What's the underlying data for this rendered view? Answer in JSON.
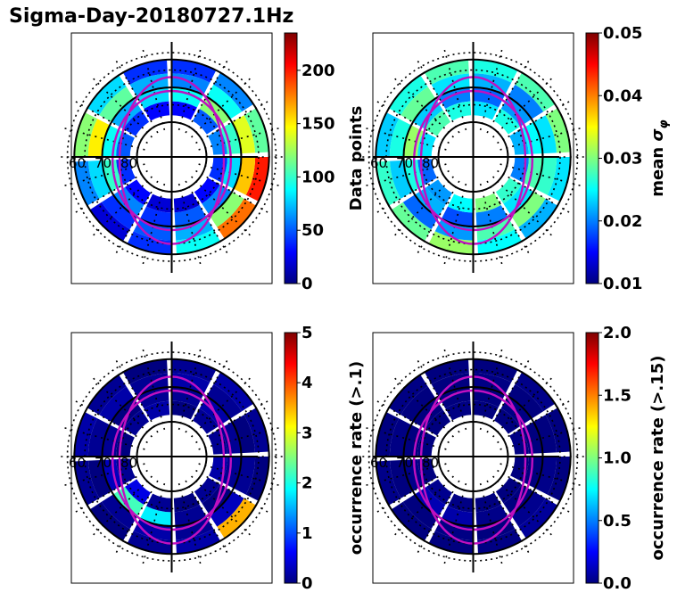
{
  "title": "Sigma-Day-20180727.1Hz",
  "colormap": [
    "#00007f",
    "#0000ff",
    "#007fff",
    "#00ffff",
    "#7fff7f",
    "#ffff00",
    "#ff7f00",
    "#ff0000",
    "#7f0000"
  ],
  "chart_data": [
    {
      "type": "heatmap",
      "panel": "data-points",
      "projection": "polar",
      "lat_labels": [
        "60",
        "70",
        "80"
      ],
      "colorbar": {
        "label": "Data points",
        "min": 0,
        "max": 235,
        "ticks": [
          "0",
          "50",
          "100",
          "150",
          "200"
        ],
        "tick_values": [
          0,
          50,
          100,
          150,
          200
        ]
      },
      "lat_bands": [
        {
          "lat_range": [
            62,
            66
          ],
          "values": [
            40,
            60,
            110,
            200,
            180,
            90,
            40,
            20,
            60,
            120,
            80,
            40
          ]
        },
        {
          "lat_range": [
            66,
            70
          ],
          "values": [
            60,
            90,
            140,
            160,
            120,
            70,
            50,
            40,
            80,
            150,
            110,
            70
          ]
        },
        {
          "lat_range": [
            70,
            74
          ],
          "values": [
            90,
            120,
            100,
            80,
            60,
            50,
            40,
            60,
            100,
            90,
            70,
            80
          ]
        },
        {
          "lat_range": [
            74,
            78
          ],
          "values": [
            30,
            50,
            60,
            40,
            30,
            20,
            20,
            30,
            40,
            50,
            40,
            30
          ]
        }
      ]
    },
    {
      "type": "heatmap",
      "panel": "mean-sigma-phi",
      "projection": "polar",
      "lat_labels": [
        "60",
        "70",
        "80"
      ],
      "colorbar": {
        "label": "mean σ_φ",
        "min": 0.01,
        "max": 0.05,
        "ticks": [
          "0.01",
          "0.02",
          "0.03",
          "0.04",
          "0.05"
        ],
        "tick_values": [
          0.01,
          0.02,
          0.03,
          0.04,
          0.05
        ]
      },
      "lat_bands": [
        {
          "lat_range": [
            62,
            66
          ],
          "values": [
            0.026,
            0.028,
            0.03,
            0.024,
            0.022,
            0.025,
            0.031,
            0.029,
            0.027,
            0.023,
            0.026,
            0.028
          ]
        },
        {
          "lat_range": [
            66,
            70
          ],
          "values": [
            0.022,
            0.02,
            0.024,
            0.027,
            0.03,
            0.028,
            0.021,
            0.019,
            0.023,
            0.026,
            0.029,
            0.024
          ]
        },
        {
          "lat_range": [
            70,
            74
          ],
          "values": [
            0.019,
            0.021,
            0.025,
            0.028,
            0.024,
            0.02,
            0.018,
            0.022,
            0.026,
            0.031,
            0.023,
            0.02
          ]
        },
        {
          "lat_range": [
            74,
            78
          ],
          "values": [
            0.024,
            0.026,
            0.022,
            0.02,
            0.027,
            0.03,
            0.025,
            0.021,
            0.019,
            0.024,
            0.028,
            0.026
          ]
        }
      ]
    },
    {
      "type": "heatmap",
      "panel": "occurrence-rate-gt-0.1",
      "projection": "polar",
      "lat_labels": [
        "60",
        "70",
        "80"
      ],
      "colorbar": {
        "label": "occurrence rate (>.1)",
        "min": 0,
        "max": 5,
        "ticks": [
          "0",
          "1",
          "2",
          "3",
          "4",
          "5"
        ],
        "tick_values": [
          0,
          1,
          2,
          3,
          4,
          5
        ]
      },
      "lat_bands": [
        {
          "lat_range": [
            62,
            66
          ],
          "values": [
            0.1,
            0.2,
            0.1,
            0,
            3.5,
            0.2,
            0.1,
            0,
            0.1,
            0.2,
            0.1,
            0
          ]
        },
        {
          "lat_range": [
            66,
            70
          ],
          "values": [
            0.2,
            0.1,
            0,
            0.1,
            0.3,
            0.1,
            0.2,
            0.1,
            0,
            0.1,
            0.2,
            0.1
          ]
        },
        {
          "lat_range": [
            70,
            74
          ],
          "values": [
            0.1,
            0.2,
            0.1,
            0.1,
            0,
            0.1,
            1.8,
            2.2,
            0.3,
            0.1,
            0,
            0.1
          ]
        },
        {
          "lat_range": [
            74,
            78
          ],
          "values": [
            0,
            0.1,
            0.1,
            0.2,
            0.1,
            0,
            0.1,
            0.5,
            0.1,
            0,
            0.1,
            0.2
          ]
        }
      ]
    },
    {
      "type": "heatmap",
      "panel": "occurrence-rate-gt-0.15",
      "projection": "polar",
      "lat_labels": [
        "60",
        "70",
        "80"
      ],
      "colorbar": {
        "label": "occurrence rate (>.15)",
        "min": 0,
        "max": 2,
        "ticks": [
          "0.0",
          "0.5",
          "1.0",
          "1.5",
          "2.0"
        ],
        "tick_values": [
          0,
          0.5,
          1.0,
          1.5,
          2.0
        ]
      },
      "lat_bands": [
        {
          "lat_range": [
            62,
            66
          ],
          "values": [
            0,
            0.02,
            0,
            0,
            0.05,
            0.01,
            0,
            0,
            0.02,
            0,
            0.01,
            0
          ]
        },
        {
          "lat_range": [
            66,
            70
          ],
          "values": [
            0.01,
            0,
            0,
            0.02,
            0.03,
            0,
            0.01,
            0,
            0,
            0.01,
            0,
            0
          ]
        },
        {
          "lat_range": [
            70,
            74
          ],
          "values": [
            0,
            0.01,
            0,
            0,
            0,
            0.02,
            0.08,
            0.1,
            0.02,
            0,
            0,
            0
          ]
        },
        {
          "lat_range": [
            74,
            78
          ],
          "values": [
            0,
            0,
            0.01,
            0,
            0,
            0,
            0.01,
            0.03,
            0,
            0,
            0,
            0.01
          ]
        }
      ]
    }
  ]
}
